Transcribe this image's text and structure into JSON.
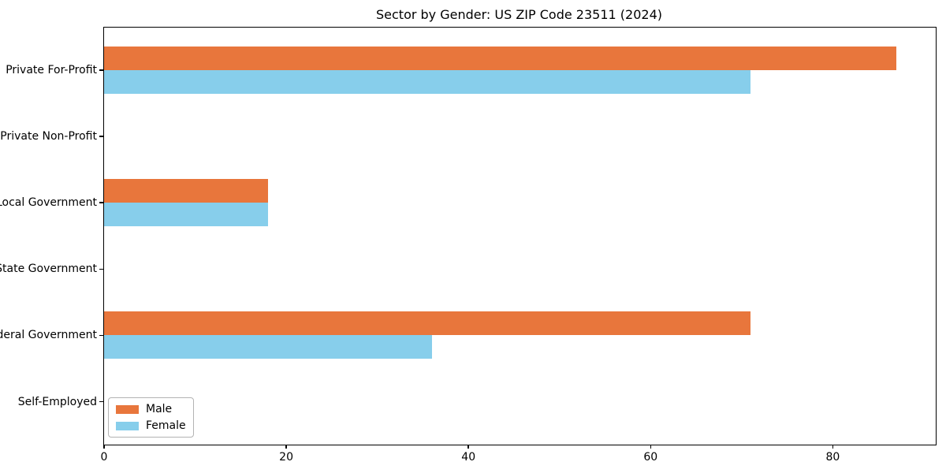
{
  "chart_data": {
    "type": "bar",
    "orientation": "horizontal",
    "title": "Sector by Gender: US ZIP Code 23511 (2024)",
    "categories": [
      "Private For-Profit",
      "Private Non-Profit",
      "Local Government",
      "State Government",
      "Federal Government",
      "Self-Employed"
    ],
    "series": [
      {
        "name": "Male",
        "color": "#E8763C",
        "values": [
          87,
          0,
          18,
          0,
          71,
          0
        ]
      },
      {
        "name": "Female",
        "color": "#87CEEB",
        "values": [
          71,
          0,
          18,
          0,
          36,
          0
        ]
      }
    ],
    "xlabel": "",
    "ylabel": "",
    "xlim": [
      0,
      91.3
    ],
    "xticks": [
      0,
      20,
      40,
      60,
      80
    ],
    "grid": false,
    "legend_position": "lower left"
  }
}
